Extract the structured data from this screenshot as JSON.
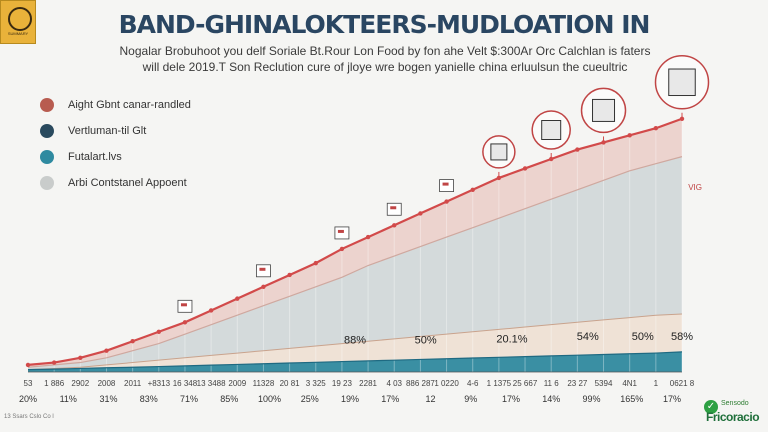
{
  "logo": {
    "text": "SUMMARY"
  },
  "header": {
    "title": "BAND-GHINALOKTEERS-MUDLOATION IN",
    "subtitle_line1": "Nogalar Brobuhoot you delf Soriale Bt.Rour Lon Food by fon ahe Velt $:300Ar Orc Calchlan is faters",
    "subtitle_line2": "will dele 2019.T Son Reclution cure of jloye wre bogen yanielle china erluulsun the cueultric"
  },
  "legend": {
    "items": [
      {
        "label": "Aight Gbnt canar-randled",
        "color": "#b85c50"
      },
      {
        "label": "Vertluman-til Glt",
        "color": "#2a4a5e"
      },
      {
        "label": "Futalart.lvs",
        "color": "#2f8aa0"
      },
      {
        "label": "Arbi Contstanel Appoent",
        "color": "#c9cccb"
      }
    ]
  },
  "brand": {
    "small": "Sensodo",
    "large": "Fricoracio"
  },
  "footnote": "13 Ssars  Cslo Co l",
  "chart_data": {
    "type": "area",
    "x": [
      0,
      1,
      2,
      3,
      4,
      5,
      6,
      7,
      8,
      9,
      10,
      11,
      12,
      13,
      14,
      15,
      16,
      17,
      18,
      19,
      20,
      21,
      22,
      23,
      24,
      25
    ],
    "x_tick_labels": [
      "53",
      "1 886",
      "2902",
      "2008",
      "2011",
      "+8313",
      "16 348",
      "13 3488",
      "2009",
      "11328",
      "20 81",
      "3 325",
      "19 23",
      "2281",
      "4 03",
      "886 287",
      "1 0220",
      "4-6",
      "1 1375",
      "25 667",
      "11 6",
      "23 27",
      "5394",
      "4N1",
      "1",
      "0621 8"
    ],
    "bottom_labels": [
      "20%",
      "11%",
      "31%",
      "83%",
      "71%",
      "85%",
      "100%",
      "25%",
      "19%",
      "17%",
      "12",
      "9%",
      "17%",
      "14%",
      "99%",
      "165%",
      "17%"
    ],
    "series": [
      {
        "values": [
          3,
          4,
          6,
          9,
          13,
          17,
          21,
          26,
          31,
          36,
          41,
          46,
          52,
          57,
          62,
          67,
          72,
          77,
          82,
          86,
          90,
          94,
          97,
          100,
          103,
          107
        ]
      },
      {
        "values": [
          2,
          3,
          4,
          6,
          9,
          12,
          16,
          20,
          24,
          28,
          32,
          36,
          40,
          45,
          49,
          53,
          57,
          61,
          65,
          69,
          73,
          77,
          81,
          85,
          88,
          91
        ]
      },
      {
        "values": [
          1,
          1.2,
          1.5,
          1.8,
          2,
          2.3,
          2.6,
          2.9,
          3.2,
          3.5,
          3.8,
          4.1,
          4.4,
          4.7,
          5,
          5.3,
          5.6,
          5.9,
          6.2,
          6.5,
          6.8,
          7.1,
          7.4,
          7.7,
          8,
          8.5
        ]
      },
      {
        "values": [
          1,
          1.5,
          2,
          3,
          4,
          5,
          6,
          7,
          8,
          9,
          10,
          11,
          12,
          13,
          14,
          15,
          16,
          17,
          18,
          19,
          20,
          21,
          22,
          23,
          24,
          24.5
        ]
      }
    ],
    "annotations": [
      {
        "x": 12.5,
        "y": 12,
        "text": "88%"
      },
      {
        "x": 15.2,
        "y": 12,
        "text": "50%"
      },
      {
        "x": 18.5,
        "y": 12.5,
        "text": "20.1%"
      },
      {
        "x": 21.4,
        "y": 13.5,
        "text": "54%"
      },
      {
        "x": 23.5,
        "y": 13.5,
        "text": "50%"
      },
      {
        "x": 25.0,
        "y": 13.5,
        "text": "58%"
      },
      {
        "x": 25.5,
        "y": 77,
        "text": "VIG"
      }
    ],
    "milestones": [
      {
        "x": 6,
        "icon": "chart-icon"
      },
      {
        "x": 9,
        "icon": "tools-icon"
      },
      {
        "x": 12,
        "icon": "tablet-icon"
      },
      {
        "x": 14,
        "icon": "gear-icon"
      },
      {
        "x": 16,
        "icon": "phone-icon"
      },
      {
        "x": 18,
        "icon": "window-icon"
      },
      {
        "x": 20,
        "icon": "settings-icon"
      },
      {
        "x": 22,
        "icon": "camera-icon"
      },
      {
        "x": 25,
        "icon": "document-icon"
      }
    ],
    "ylim": [
      0,
      120
    ],
    "grid": false,
    "legend_position": "left"
  }
}
